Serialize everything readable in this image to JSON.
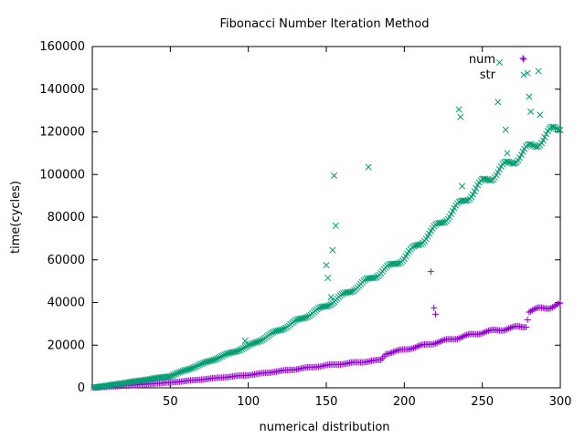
{
  "chart_data": {
    "type": "scatter",
    "title": "Fibonacci Number Iteration Method",
    "xlabel": "numerical distribution",
    "ylabel": "time(cycles)",
    "xlim": [
      0,
      300
    ],
    "ylim": [
      0,
      160000
    ],
    "xticks": [
      50,
      100,
      150,
      200,
      250,
      300
    ],
    "yticks": [
      0,
      20000,
      40000,
      60000,
      80000,
      100000,
      120000,
      140000,
      160000
    ],
    "grid": false,
    "legend_position": "top-right",
    "series": [
      {
        "name": "num",
        "marker": "plus",
        "color": "#9400d3",
        "trend": {
          "x": [
            0,
            50,
            100,
            150,
            185,
            188,
            250,
            278,
            280,
            300
          ],
          "y": [
            0,
            2500,
            6000,
            10500,
            13000,
            16000,
            26000,
            29000,
            36000,
            39000
          ]
        },
        "outliers": [
          {
            "x": 217,
            "y": 54500
          },
          {
            "x": 219,
            "y": 37500
          },
          {
            "x": 220,
            "y": 34500
          },
          {
            "x": 276,
            "y": 154500
          }
        ]
      },
      {
        "name": "str",
        "marker": "cross",
        "color": "#009e73",
        "trend": {
          "x": [
            0,
            50,
            100,
            150,
            200,
            250,
            300
          ],
          "y": [
            0,
            5500,
            19500,
            38500,
            61000,
            96000,
            123000
          ]
        },
        "outliers": [
          {
            "x": 98,
            "y": 22000
          },
          {
            "x": 150,
            "y": 57500
          },
          {
            "x": 151,
            "y": 51500
          },
          {
            "x": 153,
            "y": 42500
          },
          {
            "x": 154,
            "y": 64500
          },
          {
            "x": 155,
            "y": 99500
          },
          {
            "x": 156,
            "y": 76000
          },
          {
            "x": 177,
            "y": 103500
          },
          {
            "x": 235,
            "y": 130500
          },
          {
            "x": 236,
            "y": 127000
          },
          {
            "x": 237,
            "y": 94500
          },
          {
            "x": 260,
            "y": 134000
          },
          {
            "x": 261,
            "y": 152500
          },
          {
            "x": 265,
            "y": 121000
          },
          {
            "x": 266,
            "y": 110000
          },
          {
            "x": 279,
            "y": 147500
          },
          {
            "x": 280,
            "y": 136500
          },
          {
            "x": 281,
            "y": 129500
          },
          {
            "x": 286,
            "y": 148500
          },
          {
            "x": 287,
            "y": 128000
          }
        ]
      }
    ]
  }
}
